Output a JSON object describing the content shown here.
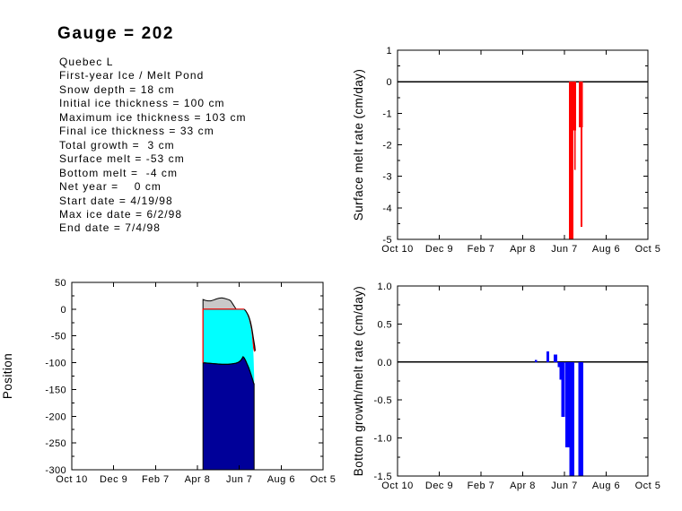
{
  "title": "Gauge = 202",
  "info_lines": [
    "Quebec L",
    "First-year Ice / Melt Pond",
    "Snow depth = 18 cm",
    "Initial ice thickness = 100 cm",
    "Maximum ice thickness = 103 cm",
    "Final ice thickness = 33 cm",
    "Total growth =  3 cm",
    "Surface melt = -53 cm",
    "Bottom melt =  -4 cm",
    "Net year =    0 cm",
    "Start date = 4/19/98",
    "Max ice date = 6/2/98",
    "End date = 7/4/98"
  ],
  "colors": {
    "axis": "#000000",
    "surface_bar": "#ff0000",
    "bottom_bar": "#0000ff",
    "water_fill": "#000099",
    "ice_fill": "#00ffff",
    "snow_fill": "#c9c9c9",
    "melt_fill": "#ff0000",
    "marker_line": "#ff0000"
  },
  "chart_data": {
    "x_axis": {
      "tick_labels": [
        "Oct 10",
        "Dec 9",
        "Feb 7",
        "Apr 8",
        "Jun 7",
        "Aug 6",
        "Oct 5"
      ],
      "tick_days": [
        0,
        60,
        120,
        180,
        240,
        300,
        360
      ],
      "range_days": [
        0,
        360
      ]
    },
    "charts": [
      {
        "id": "surface_melt",
        "type": "bar",
        "ylabel": "Surface melt rate (cm/day)",
        "ylim": [
          -5,
          1
        ],
        "ytick_labels": [
          "1",
          "0",
          "-1",
          "-2",
          "-3",
          "-4",
          "-5"
        ],
        "ytick_values": [
          1,
          0,
          -1,
          -2,
          -3,
          -4,
          -5
        ],
        "zero_line": true,
        "bar_color_key": "surface_bar",
        "bars": [
          {
            "d0": 246.5,
            "d1": 253.0,
            "v": -5.0
          },
          {
            "d0": 253.0,
            "d1": 256.8,
            "v": -1.55
          },
          {
            "d0": 254.2,
            "d1": 255.9,
            "v": -2.8
          },
          {
            "d0": 260.6,
            "d1": 266.7,
            "v": -1.45
          },
          {
            "d0": 263.2,
            "d1": 265.8,
            "v": -4.6
          }
        ]
      },
      {
        "id": "bottom_melt",
        "type": "bar",
        "ylabel": "Bottom growth/melt rate (cm/day)",
        "ylim": [
          -1.5,
          1
        ],
        "ytick_labels": [
          "1.0",
          "0.5",
          "0.0",
          "-0.5",
          "-1.0",
          "-1.5"
        ],
        "ytick_values": [
          1.0,
          0.5,
          0.0,
          -0.5,
          -1.0,
          -1.5
        ],
        "zero_line": true,
        "bar_color_key": "bottom_bar",
        "bars": [
          {
            "d0": 197.7,
            "d1": 200.9,
            "v": 0.03
          },
          {
            "d0": 214.2,
            "d1": 218.1,
            "v": 0.14
          },
          {
            "d0": 224.5,
            "d1": 229.7,
            "v": 0.1
          },
          {
            "d0": 230.5,
            "d1": 233.2,
            "v": -0.07
          },
          {
            "d0": 233.2,
            "d1": 235.8,
            "v": -0.23
          },
          {
            "d0": 235.8,
            "d1": 241.0,
            "v": -0.72
          },
          {
            "d0": 241.0,
            "d1": 247.0,
            "v": -1.12
          },
          {
            "d0": 247.0,
            "d1": 254.3,
            "v": -1.5
          },
          {
            "d0": 260.0,
            "d1": 267.0,
            "v": -1.5
          }
        ]
      },
      {
        "id": "position",
        "type": "area",
        "ylabel": "Position",
        "ylim": [
          -300,
          50
        ],
        "ytick_labels": [
          "50",
          "0",
          "-50",
          "-100",
          "-150",
          "-200",
          "-250",
          "-300"
        ],
        "ytick_values": [
          50,
          0,
          -50,
          -100,
          -150,
          -200,
          -250,
          -300
        ],
        "zero_line": false,
        "region_day_range": [
          188,
          261.2
        ],
        "series": {
          "ice_bottom": [
            [
              188,
              -100
            ],
            [
              197,
              -101
            ],
            [
              206,
              -102
            ],
            [
              215,
              -103
            ],
            [
              224,
              -103
            ],
            [
              230,
              -102
            ],
            [
              235,
              -101
            ],
            [
              239,
              -99
            ],
            [
              242,
              -96
            ],
            [
              244,
              -92
            ],
            [
              245.5,
              -89
            ],
            [
              247,
              -91
            ],
            [
              249,
              -96
            ],
            [
              251,
              -102
            ],
            [
              253,
              -108
            ],
            [
              255,
              -115
            ],
            [
              257,
              -123
            ],
            [
              259,
              -131
            ],
            [
              260.5,
              -138
            ],
            [
              261.2,
              -140
            ]
          ],
          "ice_top": [
            [
              188,
              0
            ],
            [
              247,
              0
            ],
            [
              249,
              -4
            ],
            [
              251,
              -9
            ],
            [
              252.5,
              -14
            ],
            [
              254,
              -20
            ],
            [
              255.5,
              -28
            ],
            [
              257,
              -38
            ],
            [
              258,
              -48
            ],
            [
              259,
              -60
            ],
            [
              259.8,
              -73
            ],
            [
              260.4,
              -88
            ],
            [
              260.8,
              -102
            ],
            [
              261,
              -115
            ],
            [
              261.2,
              -124
            ]
          ],
          "surface_outline": [
            [
              247,
              0
            ],
            [
              249,
              -3
            ],
            [
              251,
              -7
            ],
            [
              253,
              -12
            ],
            [
              254.5,
              -17
            ],
            [
              256,
              -24
            ],
            [
              257.5,
              -33
            ],
            [
              259,
              -44
            ],
            [
              260,
              -53
            ],
            [
              261,
              -61
            ],
            [
              262,
              -69
            ],
            [
              262.8,
              -78
            ]
          ],
          "melt_pond": [
            [
              247,
              0
            ],
            [
              249,
              -3
            ],
            [
              251,
              -7
            ],
            [
              253,
              -12
            ],
            [
              254.5,
              -17
            ],
            [
              256,
              -24
            ],
            [
              257.5,
              -33
            ],
            [
              259,
              -44
            ],
            [
              260,
              -53
            ],
            [
              261,
              -61
            ],
            [
              262,
              -69
            ],
            [
              262.8,
              -78
            ],
            [
              261.2,
              -80
            ],
            [
              259.8,
              -73
            ],
            [
              259,
              -60
            ],
            [
              258,
              -48
            ],
            [
              257,
              -38
            ],
            [
              255.5,
              -28
            ],
            [
              254,
              -20
            ],
            [
              252.5,
              -14
            ],
            [
              251,
              -9
            ],
            [
              249,
              -4
            ],
            [
              247,
              0
            ]
          ],
          "snow_top": [
            [
              188,
              18
            ],
            [
              191,
              16.5
            ],
            [
              195,
              15.5
            ],
            [
              199,
              15.5
            ],
            [
              203,
              17
            ],
            [
              207,
              19
            ],
            [
              211,
              20.5
            ],
            [
              215,
              21
            ],
            [
              219,
              20
            ],
            [
              223,
              18.5
            ],
            [
              226,
              17
            ],
            [
              228,
              15
            ],
            [
              230,
              11
            ],
            [
              232,
              7
            ],
            [
              234,
              3
            ],
            [
              235.5,
              0
            ]
          ],
          "marker_line": [
            [
              188,
              -100
            ],
            [
              188,
              0
            ],
            [
              247,
              0
            ]
          ]
        },
        "fill_bottom": -300
      }
    ]
  }
}
